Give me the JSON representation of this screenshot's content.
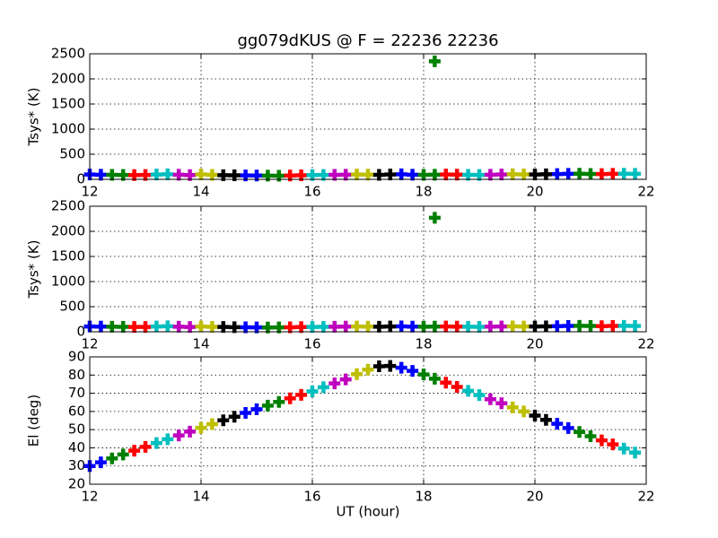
{
  "chart_data": [
    {
      "type": "scatter",
      "title": "gg079dKUS @ F = 22236 22236",
      "ylabel": "Tsys* (K)",
      "xlim": [
        12,
        22
      ],
      "xticks": [
        12,
        14,
        16,
        18,
        20,
        22
      ],
      "ylim": [
        0,
        2500
      ],
      "yticks": [
        0,
        500,
        1000,
        1500,
        2000,
        2500
      ],
      "grid": true,
      "series": [
        {
          "color": "#0000ff",
          "x": [
            12,
            12.2,
            14.8,
            15,
            17.6,
            17.8,
            20.4,
            20.6
          ],
          "values": [
            95,
            92,
            78,
            75,
            100,
            92,
            105,
            110
          ]
        },
        {
          "color": "#008000",
          "x": [
            12.4,
            12.6,
            15.2,
            15.4,
            18,
            18.2,
            20.8,
            21,
            18.2
          ],
          "values": [
            90,
            88,
            73,
            72,
            90,
            92,
            112,
            108,
            2350
          ]
        },
        {
          "color": "#ff0000",
          "x": [
            12.8,
            13,
            15.6,
            15.8,
            18.4,
            18.6,
            21.2,
            21.4
          ],
          "values": [
            85,
            87,
            76,
            80,
            95,
            93,
            105,
            110
          ]
        },
        {
          "color": "#00bfbf",
          "x": [
            13.2,
            13.4,
            16,
            16.2,
            18.8,
            19,
            21.6,
            21.8
          ],
          "values": [
            95,
            100,
            85,
            88,
            90,
            88,
            112,
            110
          ]
        },
        {
          "color": "#bf00bf",
          "x": [
            13.6,
            13.8,
            16.4,
            16.6,
            19.2,
            19.4
          ],
          "values": [
            92,
            85,
            90,
            92,
            92,
            95
          ]
        },
        {
          "color": "#bfbf00",
          "x": [
            14,
            14.2,
            16.8,
            17,
            19.6,
            19.8
          ],
          "values": [
            98,
            90,
            95,
            93,
            100,
            98
          ]
        },
        {
          "color": "#000000",
          "x": [
            14.4,
            14.6,
            17.2,
            17.4,
            20,
            20.2
          ],
          "values": [
            83,
            80,
            90,
            95,
            95,
            100
          ]
        }
      ]
    },
    {
      "type": "scatter",
      "ylabel": "Tsys* (K)",
      "xlim": [
        12,
        22
      ],
      "xticks": [
        12,
        14,
        16,
        18,
        20,
        22
      ],
      "ylim": [
        0,
        2500
      ],
      "yticks": [
        0,
        500,
        1000,
        1500,
        2000,
        2500
      ],
      "grid": true,
      "series": [
        {
          "color": "#0000ff",
          "x": [
            12,
            12.2,
            14.8,
            15,
            17.6,
            17.8,
            20.4,
            20.6
          ],
          "values": [
            105,
            102,
            90,
            88,
            108,
            102,
            112,
            115
          ]
        },
        {
          "color": "#008000",
          "x": [
            12.4,
            12.6,
            15.2,
            15.4,
            18,
            18.2,
            20.8,
            21,
            18.2
          ],
          "values": [
            100,
            98,
            85,
            86,
            100,
            102,
            118,
            115,
            2270
          ]
        },
        {
          "color": "#ff0000",
          "x": [
            12.8,
            13,
            15.6,
            15.8,
            18.4,
            18.6,
            21.2,
            21.4
          ],
          "values": [
            95,
            97,
            90,
            93,
            104,
            102,
            112,
            116
          ]
        },
        {
          "color": "#00bfbf",
          "x": [
            13.2,
            13.4,
            16,
            16.2,
            18.8,
            19,
            21.6,
            21.8
          ],
          "values": [
            105,
            110,
            96,
            98,
            100,
            98,
            118,
            116
          ]
        },
        {
          "color": "#bf00bf",
          "x": [
            13.6,
            13.8,
            16.4,
            16.6,
            19.2,
            19.4
          ],
          "values": [
            100,
            95,
            100,
            102,
            102,
            105
          ]
        },
        {
          "color": "#bfbf00",
          "x": [
            14,
            14.2,
            16.8,
            17,
            19.6,
            19.8
          ],
          "values": [
            105,
            98,
            104,
            103,
            108,
            106
          ]
        },
        {
          "color": "#000000",
          "x": [
            14.4,
            14.6,
            17.2,
            17.4,
            20,
            20.2
          ],
          "values": [
            95,
            92,
            100,
            104,
            104,
            108
          ]
        }
      ]
    },
    {
      "type": "scatter",
      "ylabel": "El (deg)",
      "xlabel": "UT (hour)",
      "xlim": [
        12,
        22
      ],
      "xticks": [
        12,
        14,
        16,
        18,
        20,
        22
      ],
      "ylim": [
        20,
        90
      ],
      "yticks": [
        20,
        30,
        40,
        50,
        60,
        70,
        80,
        90
      ],
      "grid": true,
      "series": [
        {
          "color": "#0000ff",
          "x": [
            12,
            12.2,
            14.8,
            15,
            17.6,
            17.8,
            20.4,
            20.6
          ],
          "values": [
            30,
            32,
            59.2,
            61.2,
            84,
            82.3,
            53.2,
            50.9
          ]
        },
        {
          "color": "#008000",
          "x": [
            12.4,
            12.6,
            15.2,
            15.4,
            18,
            18.2,
            20.8,
            21
          ],
          "values": [
            34.2,
            36.3,
            63.2,
            65.2,
            80.3,
            78,
            48.7,
            46.4
          ]
        },
        {
          "color": "#ff0000",
          "x": [
            12.8,
            13,
            15.6,
            15.8,
            18.4,
            18.6,
            21.2,
            21.4
          ],
          "values": [
            38.4,
            40.5,
            67.2,
            69.1,
            75.8,
            73.5,
            44.1,
            41.9
          ]
        },
        {
          "color": "#00bfbf",
          "x": [
            13.2,
            13.4,
            16,
            16.2,
            18.8,
            19,
            21.6,
            21.8
          ],
          "values": [
            42.6,
            44.7,
            71,
            73.3,
            71.3,
            69,
            39.6,
            37.4
          ]
        },
        {
          "color": "#bf00bf",
          "x": [
            13.6,
            13.8,
            16.4,
            16.6,
            19.2,
            19.4
          ],
          "values": [
            46.8,
            48.9,
            75.4,
            77.6,
            66.7,
            64.5
          ]
        },
        {
          "color": "#bfbf00",
          "x": [
            14,
            14.2,
            16.8,
            17,
            19.6,
            19.8
          ],
          "values": [
            51,
            53,
            80.5,
            83,
            62.2,
            60
          ]
        },
        {
          "color": "#000000",
          "x": [
            14.4,
            14.6,
            17.2,
            17.4,
            20,
            20.2
          ],
          "values": [
            55.1,
            57.1,
            84.8,
            85,
            57.7,
            55.4
          ]
        }
      ]
    }
  ]
}
